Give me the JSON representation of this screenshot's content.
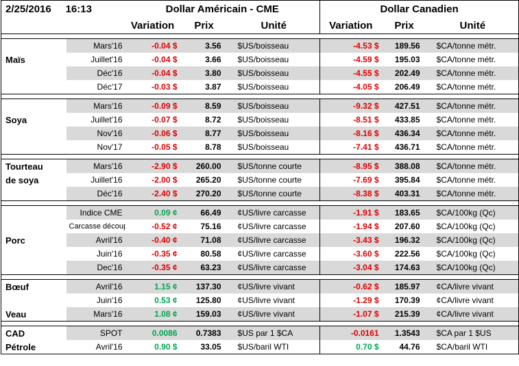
{
  "header": {
    "date": "2/25/2016",
    "time": "16:13",
    "us_title": "Dollar Américain - CME",
    "ca_title": "Dollar Canadien",
    "columns": [
      "Variation",
      "Prix",
      "Unité",
      "Variation",
      "Prix",
      "Unité"
    ]
  },
  "groups": [
    {
      "rows": [
        {
          "contract": "Mars'16",
          "us_variation": "-0.04 $",
          "us_price": "3.56",
          "us_unit": "$US/boisseau",
          "ca_variation": "-4.53 $",
          "ca_price": "189.56",
          "ca_unit": "$CA/tonne métr."
        },
        {
          "label": "Maïs",
          "contract": "Juillet'16",
          "us_variation": "-0.04 $",
          "us_price": "3.66",
          "us_unit": "$US/boisseau",
          "ca_variation": "-4.59 $",
          "ca_price": "195.03",
          "ca_unit": "$CA/tonne métr."
        },
        {
          "contract": "Déc'16",
          "us_variation": "-0.04 $",
          "us_price": "3.80",
          "us_unit": "$US/boisseau",
          "ca_variation": "-4.55 $",
          "ca_price": "202.49",
          "ca_unit": "$CA/tonne métr."
        },
        {
          "contract": "Déc'17",
          "us_variation": "-0.03 $",
          "us_price": "3.87",
          "us_unit": "$US/boisseau",
          "ca_variation": "-4.05 $",
          "ca_price": "206.49",
          "ca_unit": "$CA/tonne métr."
        }
      ]
    },
    {
      "rows": [
        {
          "contract": "Mars'16",
          "us_variation": "-0.09 $",
          "us_price": "8.59",
          "us_unit": "$US/boisseau",
          "ca_variation": "-9.32 $",
          "ca_price": "427.51",
          "ca_unit": "$CA/tonne métr."
        },
        {
          "label": "Soya",
          "contract": "Juillet'16",
          "us_variation": "-0.07 $",
          "us_price": "8.72",
          "us_unit": "$US/boisseau",
          "ca_variation": "-8.51 $",
          "ca_price": "433.85",
          "ca_unit": "$CA/tonne métr."
        },
        {
          "contract": "Nov'16",
          "us_variation": "-0.06 $",
          "us_price": "8.77",
          "us_unit": "$US/boisseau",
          "ca_variation": "-8.16 $",
          "ca_price": "436.34",
          "ca_unit": "$CA/tonne métr."
        },
        {
          "contract": "Nov'17",
          "us_variation": "-0.05 $",
          "us_price": "8.78",
          "us_unit": "$US/boisseau",
          "ca_variation": "-7.41 $",
          "ca_price": "436.71",
          "ca_unit": "$CA/tonne métr."
        }
      ]
    },
    {
      "rows": [
        {
          "label": "Tourteau",
          "contract": "Mars'16",
          "us_variation": "-2.90 $",
          "us_price": "260.00",
          "us_unit": "$US/tonne courte",
          "ca_variation": "-8.95 $",
          "ca_price": "388.08",
          "ca_unit": "$CA/tonne métr."
        },
        {
          "label": "de soya",
          "contract": "Juillet'16",
          "us_variation": "-2.00 $",
          "us_price": "265.20",
          "us_unit": "$US/tonne courte",
          "ca_variation": "-7.69 $",
          "ca_price": "395.84",
          "ca_unit": "$CA/tonne métr."
        },
        {
          "contract": "Déc'16",
          "us_variation": "-2.40 $",
          "us_price": "270.20",
          "us_unit": "$US/tonne courte",
          "ca_variation": "-8.38 $",
          "ca_price": "403.31",
          "ca_unit": "$CA/tonne métr."
        }
      ]
    },
    {
      "rows": [
        {
          "contract": "Indice CME",
          "us_variation": "0.09 ¢",
          "us_price": "66.49",
          "us_unit": "¢US/livre carcasse",
          "ca_variation": "-1.91 $",
          "ca_price": "183.65",
          "ca_unit": "$CA/100kg (Qc)"
        },
        {
          "contract": "Carcasse découpée",
          "us_variation": "-0.52 ¢",
          "us_price": "75.16",
          "us_unit": "¢US/livre carcasse",
          "ca_variation": "-1.94 $",
          "ca_price": "207.60",
          "ca_unit": "$CA/100kg (Qc)"
        },
        {
          "label": "Porc",
          "contract": "Avril'16",
          "us_variation": "-0.40 ¢",
          "us_price": "71.08",
          "us_unit": "¢US/livre carcasse",
          "ca_variation": "-3.43 $",
          "ca_price": "196.32",
          "ca_unit": "$CA/100kg (Qc)"
        },
        {
          "contract": "Juin'16",
          "us_variation": "-0.35 ¢",
          "us_price": "80.58",
          "us_unit": "¢US/livre carcasse",
          "ca_variation": "-3.60 $",
          "ca_price": "222.56",
          "ca_unit": "$CA/100kg (Qc)"
        },
        {
          "contract": "Dec'16",
          "us_variation": "-0.35 ¢",
          "us_price": "63.23",
          "us_unit": "¢US/livre carcasse",
          "ca_variation": "-3.04 $",
          "ca_price": "174.63",
          "ca_unit": "$CA/100kg (Qc)"
        }
      ]
    },
    {
      "rows": [
        {
          "label": "Bœuf",
          "contract": "Avril'16",
          "us_variation": "1.15 ¢",
          "us_price": "137.30",
          "us_unit": "¢US/livre vivant",
          "ca_variation": "-0.62 $",
          "ca_price": "185.97",
          "ca_unit": "¢CA/livre vivant"
        },
        {
          "contract": "Juin'16",
          "us_variation": "0.53 ¢",
          "us_price": "125.80",
          "us_unit": "¢US/livre vivant",
          "ca_variation": "-1.29 $",
          "ca_price": "170.39",
          "ca_unit": "¢CA/livre vivant"
        },
        {
          "label": "Veau",
          "contract": "Mars'16",
          "us_variation": "1.08 ¢",
          "us_price": "159.03",
          "us_unit": "¢US/livre vivant",
          "ca_variation": "-1.07 $",
          "ca_price": "215.39",
          "ca_unit": "¢CA/livre vivant"
        }
      ]
    },
    {
      "rows": [
        {
          "label": "CAD",
          "contract": "SPOT",
          "us_variation": "0.0086",
          "us_price": "0.7383",
          "us_unit": "$US par 1 $CA",
          "ca_variation": "-0.0161",
          "ca_price": "1.3543",
          "ca_unit": "$CA par 1 $US"
        },
        {
          "label": "Pétrole",
          "contract": "Avril'16",
          "us_variation": "0.90 $",
          "us_price": "33.05",
          "us_unit": "$US/baril WTI",
          "ca_variation": "0.70 $",
          "ca_price": "44.76",
          "ca_unit": "$CA/baril WTI"
        }
      ]
    }
  ]
}
